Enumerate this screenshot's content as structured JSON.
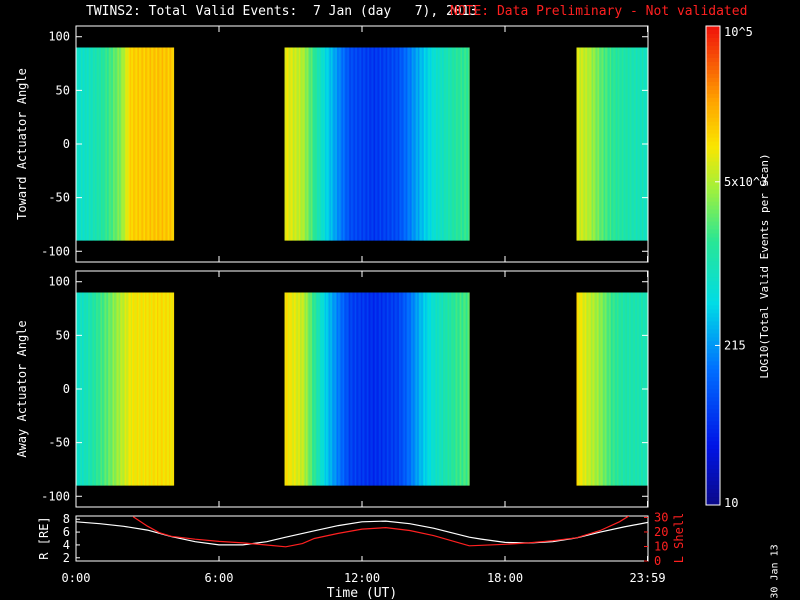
{
  "header": {
    "title": "TWINS2: Total Valid Events:  7 Jan (day   7), 2013",
    "note": "NOTE: Data Preliminary - Not validated"
  },
  "footer": {
    "date_stamp": "30 Jan 13"
  },
  "colorbar": {
    "label": "LOG10(Total Valid Events per Scan)",
    "ticks": [
      "10",
      "215",
      "5x10^3",
      "10^5"
    ],
    "range": [
      10,
      100000
    ],
    "scale": "log"
  },
  "chart_data": [
    {
      "type": "heatmap",
      "title": "TWINS2: Total Valid Events:  7 Jan (day   7), 2013",
      "ylabel": "Toward Actuator Angle",
      "ylim": [
        -110,
        110
      ],
      "yticks": [
        100,
        50,
        0,
        -50,
        -100
      ],
      "x_range_hours": [
        0,
        24
      ],
      "data_y_range": [
        -90,
        90
      ],
      "coverage_hours": [
        [
          0,
          4.1
        ],
        [
          8.75,
          16.5
        ],
        [
          21.0,
          24.0
        ]
      ],
      "level_profile_hours": [
        [
          0.0,
          0.46
        ],
        [
          0.5,
          0.48
        ],
        [
          1.0,
          0.52
        ],
        [
          1.5,
          0.58
        ],
        [
          1.9,
          0.64
        ],
        [
          2.3,
          0.78
        ],
        [
          3.5,
          0.8
        ],
        [
          4.1,
          0.79
        ],
        [
          8.75,
          0.74
        ],
        [
          9.5,
          0.68
        ],
        [
          10.0,
          0.55
        ],
        [
          10.5,
          0.42
        ],
        [
          11.0,
          0.32
        ],
        [
          11.5,
          0.22
        ],
        [
          12.5,
          0.18
        ],
        [
          13.5,
          0.22
        ],
        [
          14.0,
          0.3
        ],
        [
          14.5,
          0.38
        ],
        [
          15.0,
          0.45
        ],
        [
          16.0,
          0.54
        ],
        [
          16.5,
          0.56
        ],
        [
          21.0,
          0.72
        ],
        [
          21.5,
          0.68
        ],
        [
          22.0,
          0.6
        ],
        [
          22.5,
          0.55
        ],
        [
          23.0,
          0.52
        ],
        [
          24.0,
          0.48
        ]
      ]
    },
    {
      "type": "heatmap",
      "ylabel": "Away Actuator Angle",
      "ylim": [
        -110,
        110
      ],
      "yticks": [
        100,
        50,
        0,
        -50,
        -100
      ],
      "x_range_hours": [
        0,
        24
      ],
      "data_y_range": [
        -90,
        90
      ],
      "coverage_hours": [
        [
          0,
          4.1
        ],
        [
          8.75,
          16.5
        ],
        [
          21.0,
          24.0
        ]
      ],
      "level_profile_hours": [
        [
          0.0,
          0.46
        ],
        [
          0.5,
          0.5
        ],
        [
          1.0,
          0.56
        ],
        [
          1.5,
          0.62
        ],
        [
          1.9,
          0.68
        ],
        [
          2.3,
          0.74
        ],
        [
          3.5,
          0.76
        ],
        [
          4.1,
          0.75
        ],
        [
          8.75,
          0.76
        ],
        [
          9.5,
          0.7
        ],
        [
          10.0,
          0.55
        ],
        [
          10.5,
          0.4
        ],
        [
          11.0,
          0.3
        ],
        [
          11.5,
          0.2
        ],
        [
          12.5,
          0.16
        ],
        [
          13.5,
          0.2
        ],
        [
          14.0,
          0.28
        ],
        [
          14.5,
          0.38
        ],
        [
          15.0,
          0.46
        ],
        [
          16.0,
          0.56
        ],
        [
          16.5,
          0.58
        ],
        [
          21.0,
          0.76
        ],
        [
          21.5,
          0.7
        ],
        [
          22.0,
          0.64
        ],
        [
          22.5,
          0.56
        ],
        [
          23.0,
          0.52
        ],
        [
          24.0,
          0.5
        ]
      ]
    },
    {
      "type": "line",
      "xlabel": "Time (UT)",
      "x_ticks": [
        "0:00",
        "6:00",
        "12:00",
        "18:00",
        "23:59"
      ],
      "x_tick_hours": [
        0,
        6,
        12,
        18,
        23.98
      ],
      "left_axis": {
        "label": "R [RE]",
        "ylim": [
          1.5,
          8.5
        ],
        "ticks": [
          2,
          4,
          6,
          8
        ]
      },
      "right_axis": {
        "label": "L Shell",
        "ylim": [
          0,
          31
        ],
        "ticks": [
          0,
          10,
          20,
          30
        ],
        "color": "#ff2020"
      },
      "series": [
        {
          "axis": "left",
          "color": "#ffffff",
          "x": [
            0,
            1,
            2,
            3,
            4,
            5,
            6,
            7,
            8,
            8.8,
            10,
            11,
            12,
            13,
            14,
            15,
            16.5,
            17,
            18,
            19,
            20,
            21,
            22,
            23,
            24
          ],
          "y": [
            7.6,
            7.3,
            6.9,
            6.3,
            5.3,
            4.5,
            4.0,
            4.0,
            4.5,
            5.2,
            6.2,
            7.0,
            7.6,
            7.7,
            7.3,
            6.6,
            5.2,
            4.9,
            4.4,
            4.3,
            4.5,
            5.1,
            6.0,
            6.8,
            7.5
          ]
        },
        {
          "axis": "right",
          "color": "#ff2020",
          "x": [
            2.4,
            3.0,
            3.5,
            4.0,
            5.0,
            6.0,
            7.0,
            8.0,
            8.8,
            9.5,
            10.0,
            11.0,
            12.0,
            13.0,
            14.0,
            15.0,
            16.5,
            17.0,
            18.0,
            19.0,
            20.0,
            21.0,
            22.0,
            22.8,
            23.2
          ],
          "y": [
            30.5,
            24.0,
            19.5,
            17.0,
            15.0,
            13.5,
            12.5,
            11.0,
            9.8,
            12.0,
            15.5,
            19.0,
            22.0,
            23.0,
            21.0,
            17.5,
            10.5,
            10.8,
            11.5,
            12.5,
            14.0,
            16.0,
            21.0,
            27.0,
            31.0
          ]
        }
      ]
    }
  ]
}
